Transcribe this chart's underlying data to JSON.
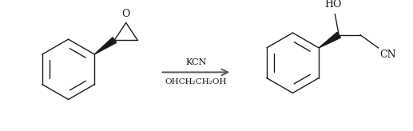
{
  "background_color": "#ffffff",
  "line_color": "#1a1a1a",
  "arrow_color": "#555555",
  "text_color": "#111111",
  "reagent1": "KCN",
  "reagent2": "OHCH₂CH₂OH",
  "ho_label": "HO",
  "cn_label": "CN",
  "figsize": [
    5.17,
    1.64
  ],
  "dpi": 100
}
